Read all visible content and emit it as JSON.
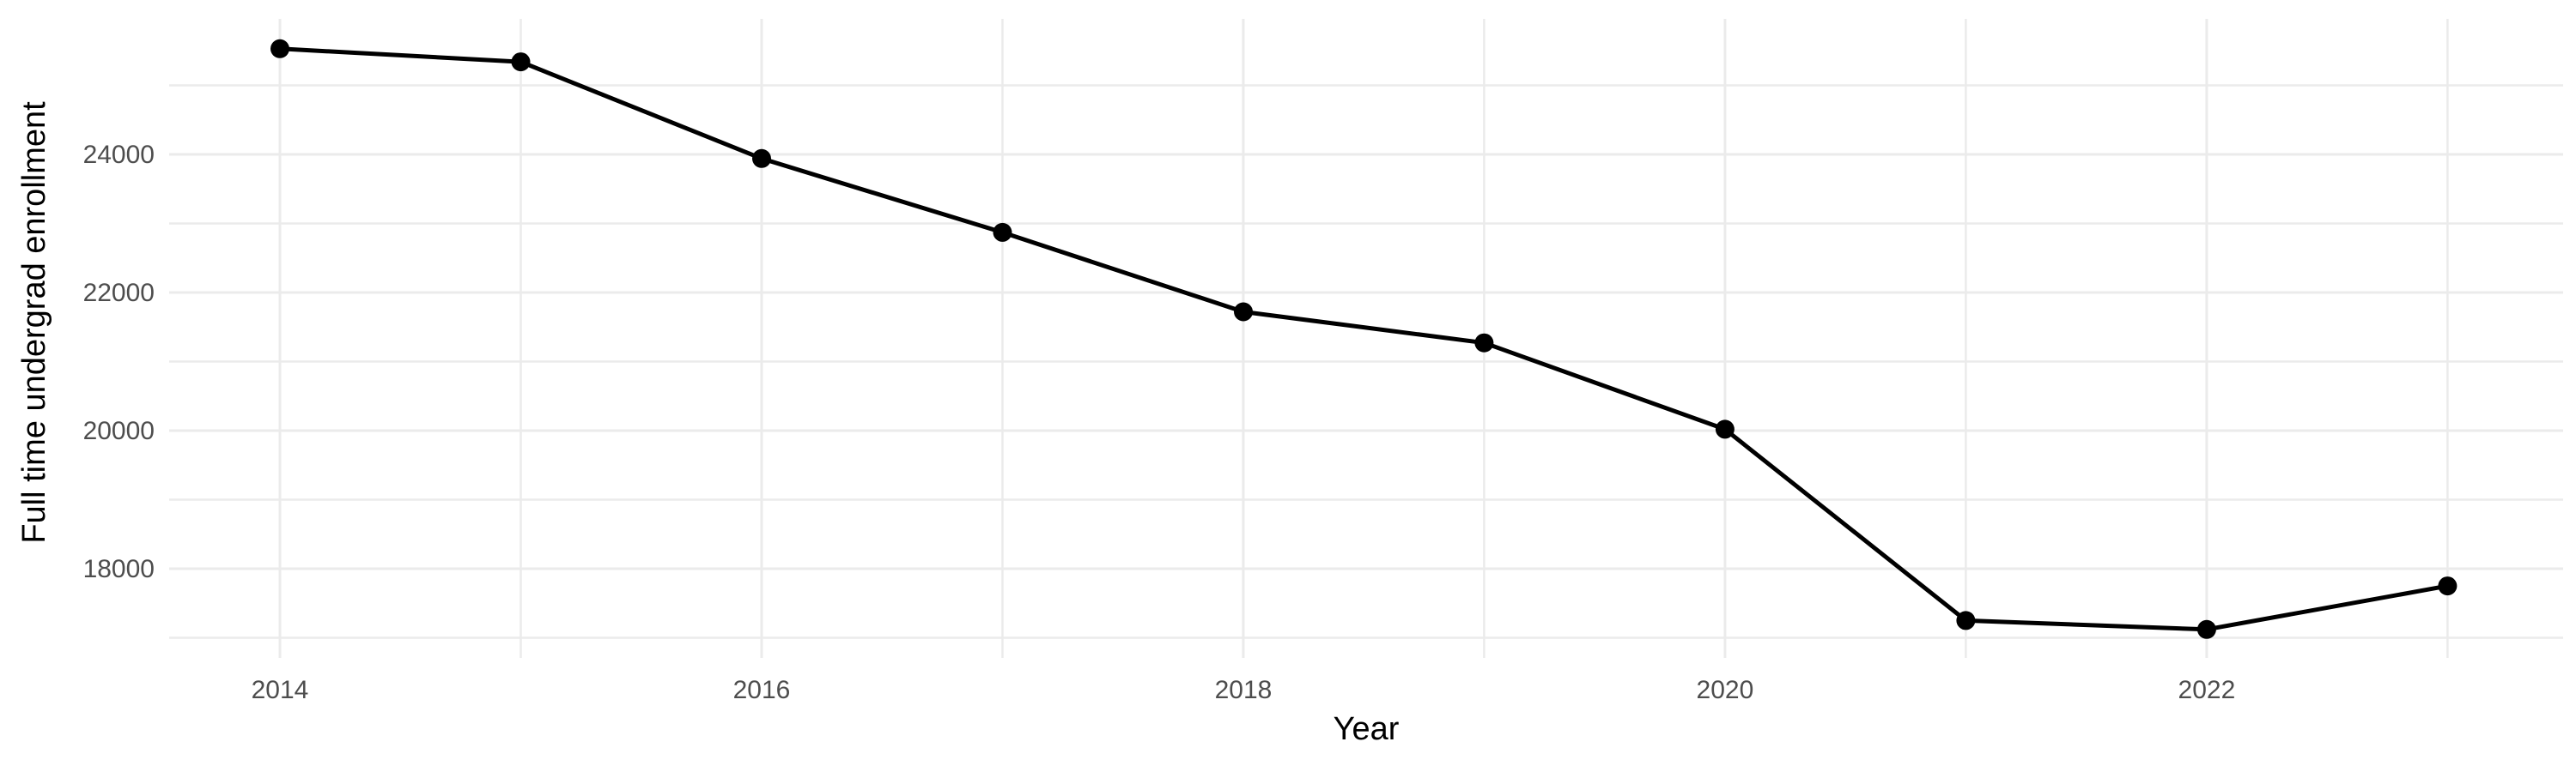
{
  "chart_data": {
    "type": "line",
    "title": "",
    "xlabel": "Year",
    "ylabel": "Full time undergrad enrollment",
    "x": [
      2014,
      2015,
      2016,
      2017,
      2018,
      2019,
      2020,
      2021,
      2022,
      2023
    ],
    "series": [
      {
        "name": "Full time undergrad enrollment",
        "values": [
          25530,
          25340,
          23940,
          22870,
          21720,
          21270,
          20020,
          17250,
          17120,
          17750
        ]
      }
    ],
    "x_ticks": [
      2014,
      2016,
      2018,
      2020,
      2022
    ],
    "x_tick_labels": [
      "2014",
      "2016",
      "2018",
      "2020",
      "2022"
    ],
    "x_minor_gridlines": [
      2015,
      2017,
      2019,
      2021,
      2023
    ],
    "y_ticks": [
      18000,
      20000,
      22000,
      24000
    ],
    "y_tick_labels": [
      "18000",
      "20000",
      "22000",
      "24000"
    ],
    "y_minor_gridlines": [
      17000,
      19000,
      21000,
      23000,
      25000
    ],
    "xlim": [
      2013.54,
      2023.48
    ],
    "ylim": [
      16708,
      25962
    ],
    "grid": "on",
    "legend": "none"
  },
  "style": {
    "background": "#FFFFFF",
    "line_color": "#000000",
    "point_color": "#000000",
    "grid_color": "#EBEBEB",
    "tick_label_color": "#4D4D4D",
    "axis_title_color": "#000000"
  }
}
